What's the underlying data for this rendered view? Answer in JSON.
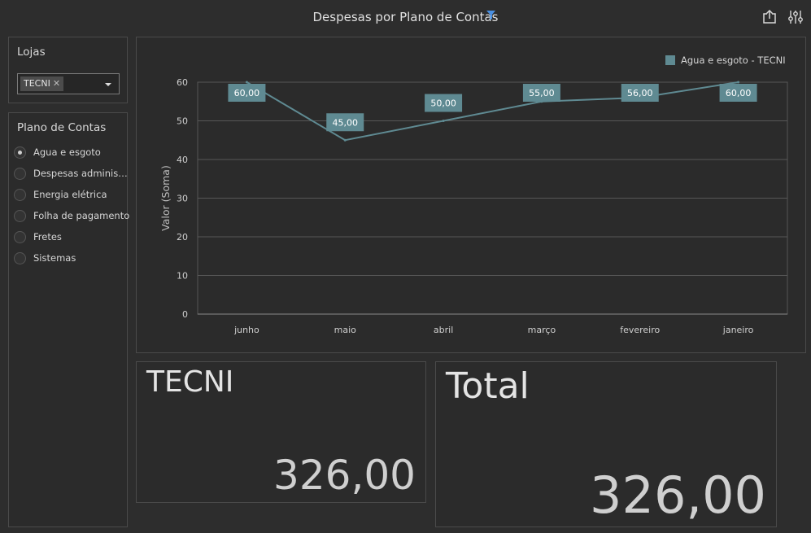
{
  "header": {
    "title": "Despesas por Plano de Contas"
  },
  "icons": {
    "filter": "filter-icon",
    "export": "export-icon",
    "parameters": "parameters-icon",
    "accent": "#4a90e2"
  },
  "lojas": {
    "title": "Lojas",
    "selected_tag": "TECNI"
  },
  "plano": {
    "title": "Plano de Contas",
    "items": [
      {
        "label": "Agua e esgoto",
        "selected": true
      },
      {
        "label": "Despesas administrativas",
        "selected": false
      },
      {
        "label": "Energia elétrica",
        "selected": false
      },
      {
        "label": "Folha de pagamento",
        "selected": false
      },
      {
        "label": "Fretes",
        "selected": false
      },
      {
        "label": "Sistemas",
        "selected": false
      }
    ]
  },
  "chart_data": {
    "type": "line",
    "ylabel": "Valor (Soma)",
    "xlabel": "",
    "categories": [
      "junho",
      "maio",
      "abril",
      "março",
      "fevereiro",
      "janeiro"
    ],
    "series": [
      {
        "name": "Agua e esgoto - TECNI",
        "values": [
          60,
          45,
          50,
          55,
          56,
          60
        ],
        "labels": [
          "60,00",
          "45,00",
          "50,00",
          "55,00",
          "56,00",
          "60,00"
        ],
        "color": "#5f8a92"
      }
    ],
    "ylim": [
      0,
      60
    ],
    "yticks": [
      0,
      10,
      20,
      30,
      40,
      50,
      60
    ],
    "grid": true,
    "legend_position": "top-right"
  },
  "cards": [
    {
      "label": "TECNI",
      "value": "326,00"
    },
    {
      "label": "Total",
      "value": "326,00"
    }
  ]
}
